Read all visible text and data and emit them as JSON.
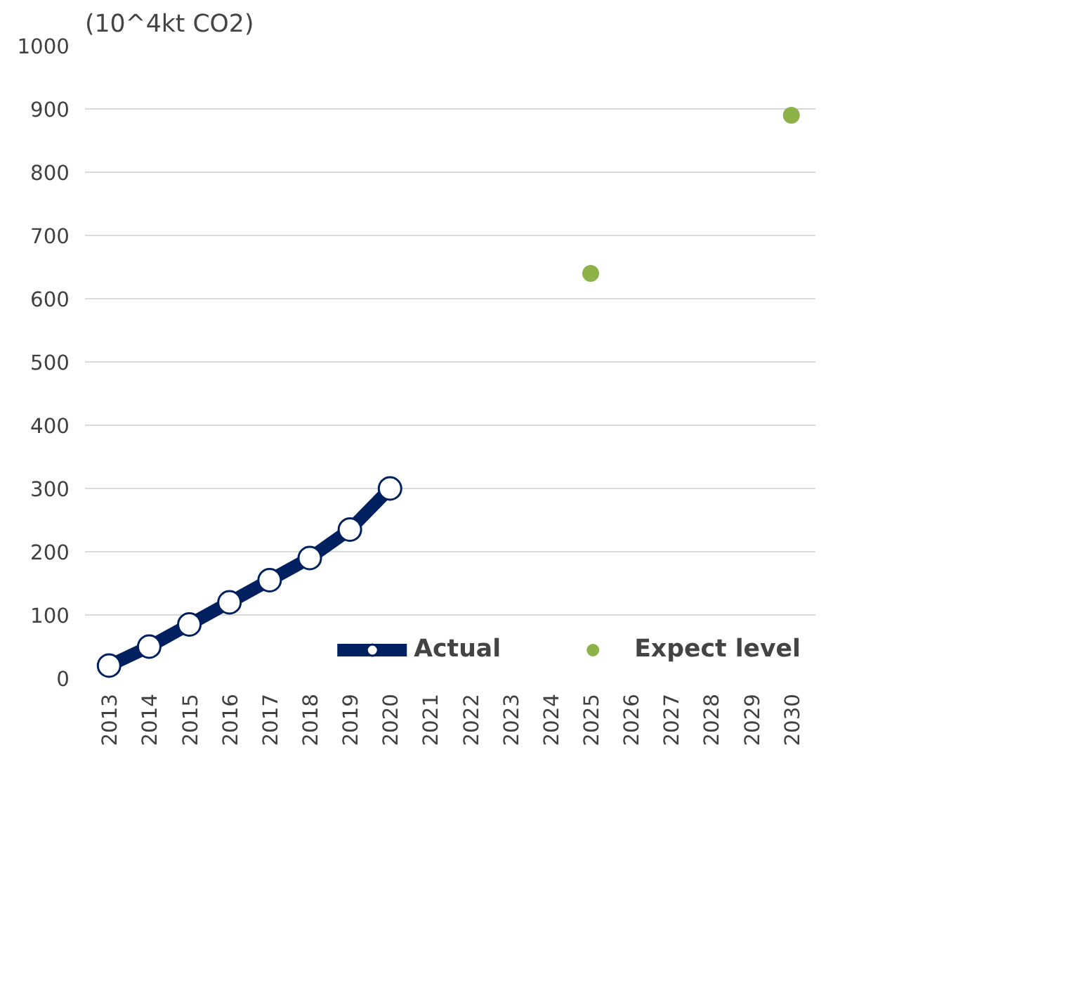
{
  "chart_data": {
    "type": "line",
    "ylabel": "(10^4kt CO2)",
    "categories": [
      "2013",
      "2014",
      "2015",
      "2016",
      "2017",
      "2018",
      "2019",
      "2020",
      "2021",
      "2022",
      "2023",
      "2024",
      "2025",
      "2026",
      "2027",
      "2028",
      "2029",
      "2030"
    ],
    "ylim": [
      0,
      1000
    ],
    "yticks": [
      0,
      100,
      200,
      300,
      400,
      500,
      600,
      700,
      800,
      900,
      1000
    ],
    "grid": "y",
    "legend": "bottom right",
    "series": [
      {
        "name": "Actual",
        "marker": "circle",
        "color": "#002060",
        "values": [
          20,
          50,
          85,
          120,
          155,
          190,
          235,
          300,
          null,
          null,
          null,
          null,
          null,
          null,
          null,
          null,
          null,
          null
        ]
      },
      {
        "name": "Expect level",
        "type": "scatter",
        "color": "#8db24a",
        "values": [
          null,
          null,
          null,
          null,
          null,
          null,
          null,
          null,
          null,
          null,
          null,
          null,
          640,
          null,
          null,
          null,
          null,
          890
        ]
      }
    ]
  }
}
